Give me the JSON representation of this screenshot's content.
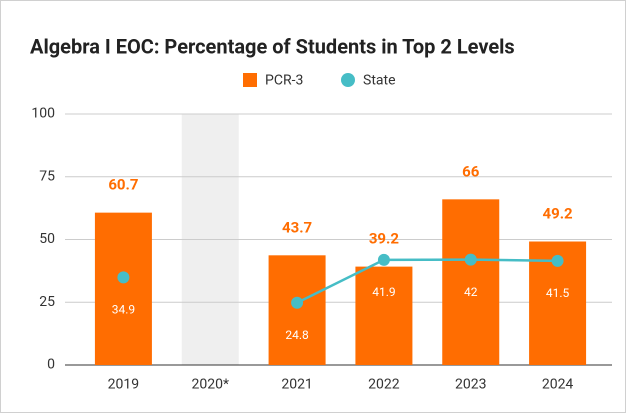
{
  "chart_data": {
    "type": "bar",
    "title": "Algebra I EOC: Percentage of Students in Top 2 Levels",
    "categories": [
      "2019",
      "2020*",
      "2021",
      "2022",
      "2023",
      "2024"
    ],
    "series": [
      {
        "name": "PCR-3",
        "type": "bar",
        "color": "#ff6d01",
        "values": [
          60.7,
          null,
          43.7,
          39.2,
          66,
          49.2
        ]
      },
      {
        "name": "State",
        "type": "line",
        "color": "#46bdc6",
        "values": [
          34.9,
          null,
          24.8,
          41.9,
          42,
          41.5
        ]
      }
    ],
    "ylim": [
      0,
      100
    ],
    "yticks": [
      0,
      25,
      50,
      75,
      100
    ],
    "grid": true,
    "legend": "top"
  }
}
